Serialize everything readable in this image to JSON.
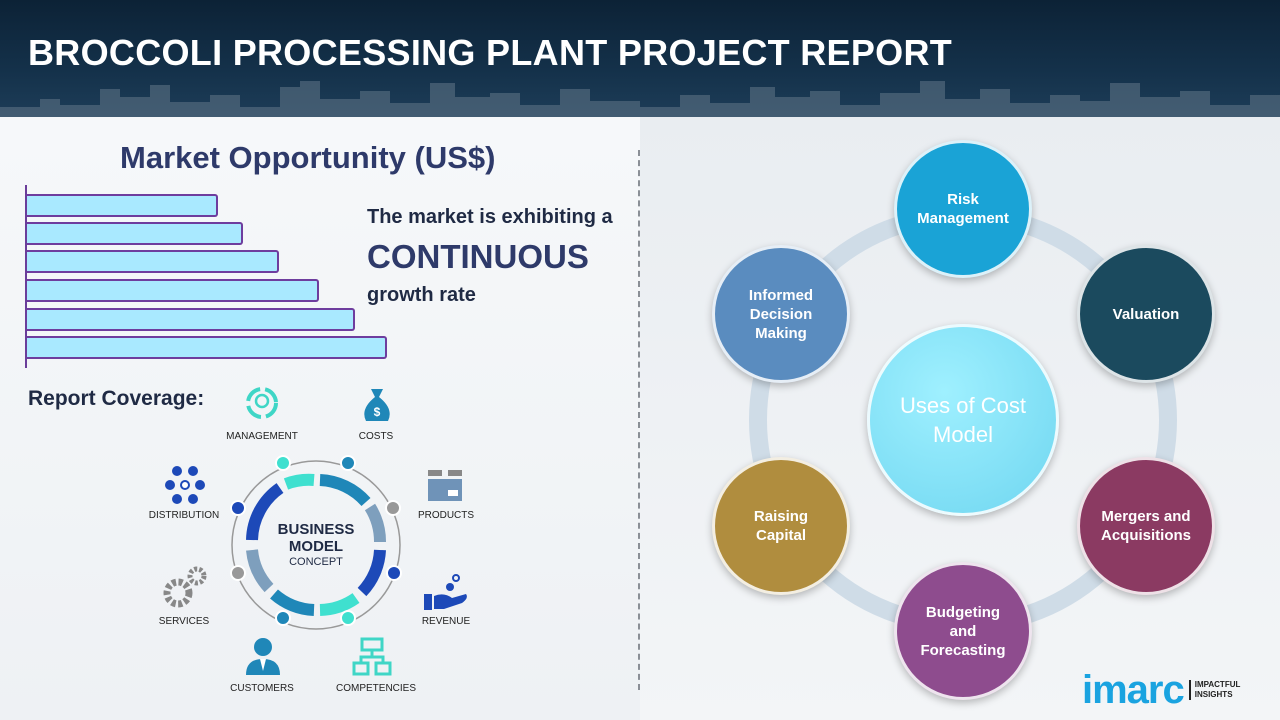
{
  "header": {
    "title": "BROCCOLI PROCESSING PLANT PROJECT REPORT"
  },
  "market": {
    "title": "Market Opportunity (US$)",
    "line1": "The market is exhibiting a",
    "line2": "CONTINUOUS",
    "line3": "growth rate",
    "bar_relative_values": [
      0.53,
      0.6,
      0.7,
      0.81,
      0.91,
      1.0
    ],
    "bar_fill": "#a9e9ff",
    "bar_border": "#6e3d9e"
  },
  "coverage": {
    "title": "Report Coverage:",
    "center": {
      "line1": "BUSINESS",
      "line2": "MODEL",
      "line3": "CONCEPT"
    },
    "items": [
      "MANAGEMENT",
      "COSTS",
      "PRODUCTS",
      "REVENUE",
      "COMPETENCIES",
      "CUSTOMERS",
      "SERVICES",
      "DISTRIBUTION"
    ]
  },
  "uses": {
    "center": "Uses of Cost Model",
    "items": [
      {
        "label": "Risk Management",
        "color": "#1aa3d6"
      },
      {
        "label": "Valuation",
        "color": "#1b4a5e"
      },
      {
        "label": "Mergers and Acquisitions",
        "color": "#8b3a62"
      },
      {
        "label": "Budgeting and Forecasting",
        "color": "#8e4c8e"
      },
      {
        "label": "Raising Capital",
        "color": "#b08d3e"
      },
      {
        "label": "Informed Decision Making",
        "color": "#5a8cbf"
      }
    ]
  },
  "logo": {
    "word": "imarc",
    "tag1": "IMPACTFUL",
    "tag2": "INSIGHTS"
  }
}
